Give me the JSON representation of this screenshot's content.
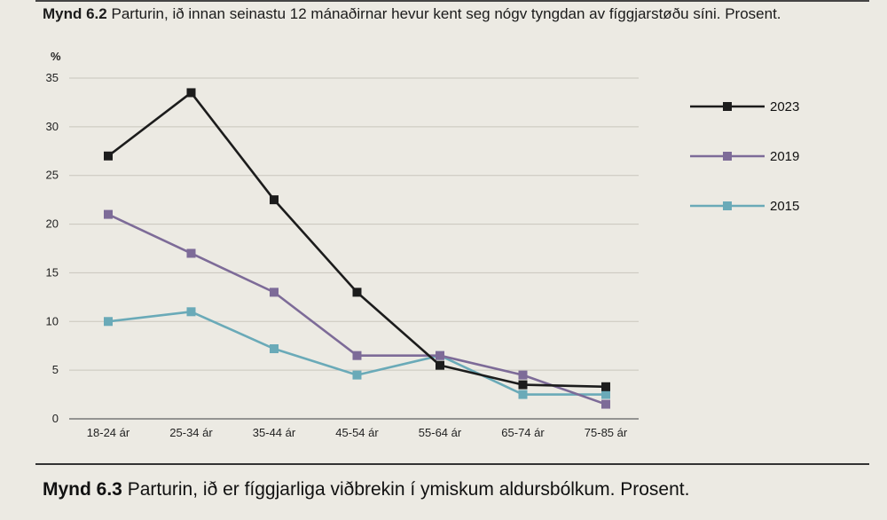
{
  "figure_top": {
    "label": "Mynd 6.2",
    "text": "Parturin, ið innan seinastu 12 mánaðirnar hevur kent seg nógv tyngdan av fíggjarstøðu síni. Prosent."
  },
  "figure_bottom": {
    "label": "Mynd 6.3",
    "text": "Parturin, ið er fíggjarliga viðbrekin í ymiskum aldursbólkum. Prosent."
  },
  "chart_data": {
    "type": "line",
    "title": "",
    "xlabel": "",
    "ylabel": "%",
    "ylim": [
      0,
      35
    ],
    "yticks": [
      "0",
      "5",
      "10",
      "15",
      "20",
      "25",
      "30",
      "35"
    ],
    "grid": true,
    "legend_position": "right",
    "categories": [
      "18-24 ár",
      "25-34 ár",
      "35-44 ár",
      "45-54 ár",
      "55-64 ár",
      "65-74 ár",
      "75-85 ár"
    ],
    "series": [
      {
        "name": "2023",
        "color": "#1c1c1c",
        "values": [
          27,
          33.5,
          22.5,
          13,
          5.5,
          3.5,
          3.3
        ]
      },
      {
        "name": "2019",
        "color": "#7d6b98",
        "values": [
          21,
          17,
          13,
          6.5,
          6.5,
          4.5,
          1.5
        ]
      },
      {
        "name": "2015",
        "color": "#6aaab8",
        "values": [
          10,
          11,
          7.2,
          4.5,
          6.5,
          2.5,
          2.5
        ]
      }
    ]
  }
}
